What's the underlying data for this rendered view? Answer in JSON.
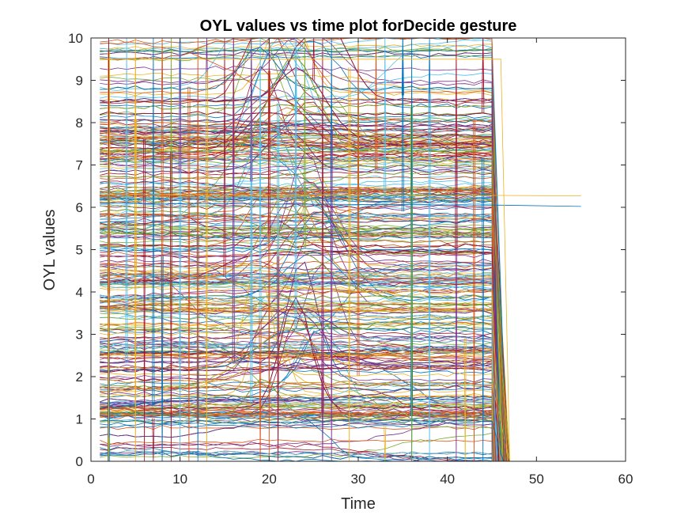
{
  "chart_data": {
    "type": "line",
    "title": "OYL values vs time plot forDecide gesture",
    "xlabel": "Time",
    "ylabel": "OYL values",
    "xlim": [
      0,
      60
    ],
    "ylim": [
      0,
      10
    ],
    "xticks": [
      "0",
      "10",
      "20",
      "30",
      "40",
      "50",
      "60"
    ],
    "yticks": [
      "0",
      "1",
      "2",
      "3",
      "4",
      "5",
      "6",
      "7",
      "8",
      "9",
      "10"
    ],
    "grid": false,
    "legend": "none",
    "series_count_approx": 600,
    "palette": [
      "#0072BD",
      "#D95319",
      "#EDB120",
      "#7E2F8E",
      "#77AC30",
      "#4DBEEE",
      "#A2142F"
    ],
    "structure": {
      "x_start": 1,
      "x_end_typical": 45,
      "drop_to_zero_at": [
        45,
        47
      ],
      "x_end_extended": 55
    },
    "dense_bands": [
      {
        "y": 7.7,
        "x_from": 16,
        "x_to": 45
      },
      {
        "y": 7.2,
        "x_from": 1,
        "x_to": 45
      },
      {
        "y": 6.3,
        "x_from": 20,
        "x_to": 27
      },
      {
        "y": 5.5,
        "x_from": 1,
        "x_to": 12
      },
      {
        "y": 4.35,
        "x_from": 27,
        "x_to": 45
      },
      {
        "y": 3.7,
        "x_from": 1,
        "x_to": 8
      },
      {
        "y": 2.6,
        "x_from": 28,
        "x_to": 45
      },
      {
        "y": 1.2,
        "x_from": 1,
        "x_to": 45
      }
    ],
    "highlighted_series": [
      {
        "x": [
          1,
          45,
          46,
          55
        ],
        "y": [
          6.1,
          6.05,
          6.05,
          6.02
        ],
        "color": "#0072BD"
      },
      {
        "x": [
          1,
          45,
          46,
          55
        ],
        "y": [
          6.3,
          6.28,
          6.28,
          6.27
        ],
        "color": "#EDB120"
      },
      {
        "x": [
          1,
          45,
          46,
          47,
          55
        ],
        "y": [
          9.5,
          9.5,
          9.5,
          0,
          0
        ],
        "color": "#EDB120"
      }
    ]
  }
}
